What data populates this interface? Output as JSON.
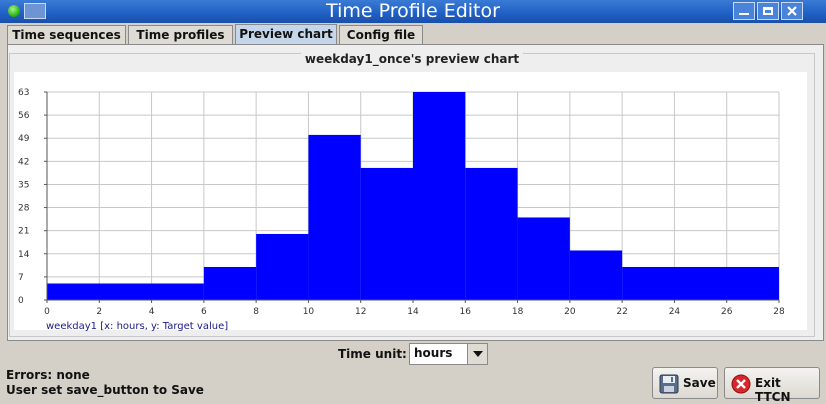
{
  "window": {
    "title": "Time Profile Editor"
  },
  "tabs": [
    {
      "label": "Time sequences",
      "active": false
    },
    {
      "label": "Time profiles",
      "active": false
    },
    {
      "label": "Preview chart",
      "active": true
    },
    {
      "label": "Config file",
      "active": false
    }
  ],
  "chart_data": {
    "type": "bar",
    "title": "weekday1_once's preview chart",
    "legend_label": "weekday1 [x: hours, y: Target value]",
    "x_ticks": [
      "0",
      "2",
      "4",
      "6",
      "8",
      "10",
      "12",
      "14",
      "16",
      "18",
      "20",
      "22",
      "24",
      "26",
      "28"
    ],
    "y_ticks": [
      "0",
      "7",
      "14",
      "21",
      "28",
      "35",
      "42",
      "49",
      "56",
      "63"
    ],
    "xlim": [
      0,
      28
    ],
    "ylim": [
      0,
      63
    ],
    "grid": true,
    "bar_color": "#0000ff",
    "bars": [
      {
        "x_start": 0,
        "x_end": 6,
        "value": 5
      },
      {
        "x_start": 6,
        "x_end": 8,
        "value": 10
      },
      {
        "x_start": 8,
        "x_end": 10,
        "value": 20
      },
      {
        "x_start": 10,
        "x_end": 12,
        "value": 50
      },
      {
        "x_start": 12,
        "x_end": 14,
        "value": 40
      },
      {
        "x_start": 14,
        "x_end": 16,
        "value": 65
      },
      {
        "x_start": 16,
        "x_end": 18,
        "value": 40
      },
      {
        "x_start": 18,
        "x_end": 20,
        "value": 25
      },
      {
        "x_start": 20,
        "x_end": 22,
        "value": 15
      },
      {
        "x_start": 22,
        "x_end": 28,
        "value": 10
      }
    ]
  },
  "controls": {
    "time_unit_label": "Time unit:",
    "time_unit_value": "hours"
  },
  "status": {
    "errors": "Errors: none",
    "message": "User set save_button to Save"
  },
  "buttons": {
    "save": "Save",
    "exit": "Exit TTCN"
  }
}
